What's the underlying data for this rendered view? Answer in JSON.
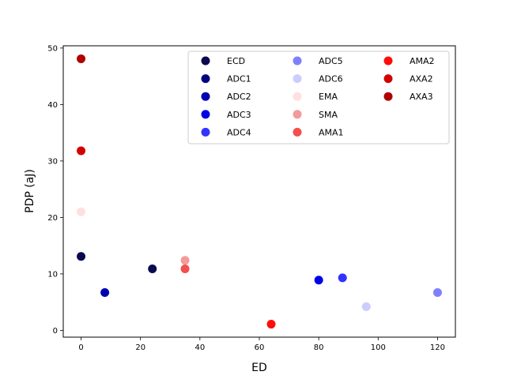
{
  "chart_data": {
    "type": "scatter",
    "title": "",
    "xlabel": "ED",
    "ylabel": "PDP (aJ)",
    "xlim": [
      -6,
      126
    ],
    "ylim": [
      -1.2,
      50.4
    ],
    "xticks": [
      0,
      20,
      40,
      60,
      80,
      100,
      120
    ],
    "yticks": [
      0,
      10,
      20,
      30,
      40,
      50
    ],
    "grid": false,
    "legend": {
      "placement": "upper right",
      "columns": 3
    },
    "series": [
      {
        "name": "ECD",
        "color": "#0a0a4e",
        "x": [
          0,
          24
        ],
        "y": [
          13.1,
          10.9
        ]
      },
      {
        "name": "ADC1",
        "color": "#000080",
        "x": [],
        "y": []
      },
      {
        "name": "ADC2",
        "color": "#0000b3",
        "x": [
          8
        ],
        "y": [
          6.7
        ]
      },
      {
        "name": "ADC3",
        "color": "#0000e6",
        "x": [
          80
        ],
        "y": [
          8.9
        ]
      },
      {
        "name": "ADC4",
        "color": "#3333ff",
        "x": [
          88
        ],
        "y": [
          9.3
        ]
      },
      {
        "name": "ADC5",
        "color": "#7f7fff",
        "x": [
          120
        ],
        "y": [
          6.7
        ]
      },
      {
        "name": "ADC6",
        "color": "#ccccff",
        "x": [
          96
        ],
        "y": [
          4.2
        ]
      },
      {
        "name": "EMA",
        "color": "#ffe0e0",
        "x": [
          0
        ],
        "y": [
          21
        ]
      },
      {
        "name": "SMA",
        "color": "#f59a9a",
        "x": [
          35
        ],
        "y": [
          12.4
        ]
      },
      {
        "name": "AMA1",
        "color": "#f24f4f",
        "x": [
          35
        ],
        "y": [
          10.9
        ]
      },
      {
        "name": "AMA2",
        "color": "#ff0d0d",
        "x": [
          64
        ],
        "y": [
          1.1
        ]
      },
      {
        "name": "AXA2",
        "color": "#d40000",
        "x": [
          0
        ],
        "y": [
          31.8
        ]
      },
      {
        "name": "AXA3",
        "color": "#b00000",
        "x": [
          0
        ],
        "y": [
          48.1
        ]
      }
    ]
  }
}
